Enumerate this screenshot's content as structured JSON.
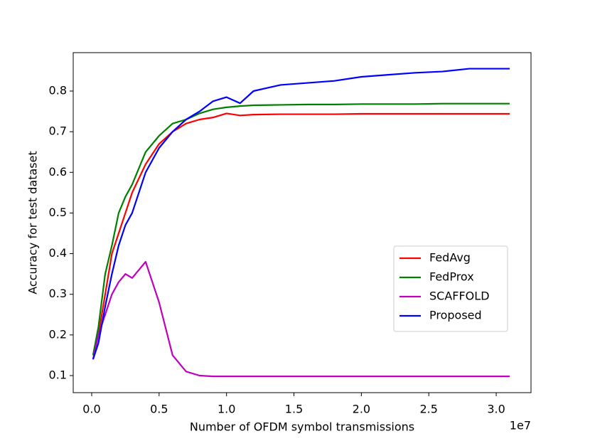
{
  "chart_data": {
    "type": "line",
    "x_label": "Number of OFDM symbol transmissions",
    "y_label": "Accuracy for test dataset",
    "x_offset_label": "1e7",
    "x": [
      0.01,
      0.05,
      0.1,
      0.15,
      0.2,
      0.25,
      0.3,
      0.4,
      0.5,
      0.6,
      0.7,
      0.8,
      0.9,
      1.0,
      1.1,
      1.2,
      1.4,
      1.6,
      1.8,
      2.0,
      2.2,
      2.4,
      2.6,
      2.8,
      3.0,
      3.1
    ],
    "series": [
      {
        "name": "FedAvg",
        "color": "#ff0000",
        "values": [
          0.15,
          0.2,
          0.3,
          0.4,
          0.45,
          0.5,
          0.55,
          0.62,
          0.67,
          0.7,
          0.72,
          0.73,
          0.735,
          0.745,
          0.74,
          0.742,
          0.743,
          0.743,
          0.743,
          0.744,
          0.744,
          0.744,
          0.744,
          0.744,
          0.744,
          0.744
        ]
      },
      {
        "name": "FedProx",
        "color": "#008000",
        "values": [
          0.15,
          0.22,
          0.35,
          0.42,
          0.5,
          0.54,
          0.57,
          0.65,
          0.69,
          0.72,
          0.73,
          0.745,
          0.755,
          0.76,
          0.763,
          0.765,
          0.766,
          0.767,
          0.767,
          0.768,
          0.768,
          0.768,
          0.769,
          0.769,
          0.769,
          0.769
        ]
      },
      {
        "name": "SCAFFOLD",
        "color": "#bf00bf",
        "values": [
          0.14,
          0.2,
          0.25,
          0.3,
          0.33,
          0.35,
          0.34,
          0.38,
          0.28,
          0.15,
          0.11,
          0.1,
          0.098,
          0.098,
          0.098,
          0.098,
          0.098,
          0.098,
          0.098,
          0.098,
          0.098,
          0.098,
          0.098,
          0.098,
          0.098,
          0.098
        ]
      },
      {
        "name": "Proposed",
        "color": "#0000ff",
        "values": [
          0.14,
          0.18,
          0.27,
          0.35,
          0.42,
          0.47,
          0.5,
          0.6,
          0.66,
          0.7,
          0.73,
          0.75,
          0.775,
          0.785,
          0.77,
          0.8,
          0.815,
          0.82,
          0.825,
          0.835,
          0.84,
          0.845,
          0.848,
          0.855,
          0.855,
          0.855
        ]
      }
    ],
    "xlim": [
      -0.137,
      3.258
    ],
    "ylim": [
      0.058,
      0.8945
    ],
    "xticks": [
      {
        "value": 0,
        "label": "0.0"
      },
      0.5,
      {
        "value": 1,
        "label": "1.0"
      },
      1.5,
      {
        "value": 2,
        "label": "2.0"
      },
      2.5,
      {
        "value": 3,
        "label": "3.0"
      }
    ],
    "yticks": [
      0.1,
      0.2,
      0.3,
      0.4,
      0.5,
      0.6,
      0.7,
      0.8
    ],
    "legend": "center right"
  }
}
